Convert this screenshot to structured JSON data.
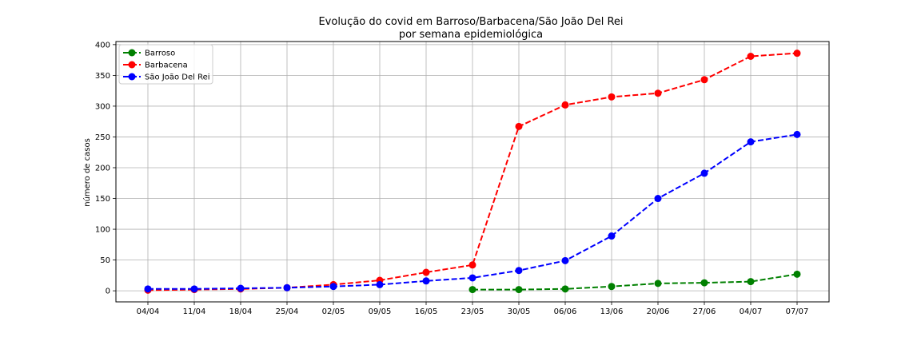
{
  "chart_data": {
    "type": "line",
    "title_line1": "Evolução do covid em Barroso/Barbacena/São João Del Rei",
    "title_line2": "por semana epidemiológica",
    "xlabel": "",
    "ylabel": "número de casos",
    "categories": [
      "04/04",
      "11/04",
      "18/04",
      "25/04",
      "02/05",
      "09/05",
      "16/05",
      "23/05",
      "30/05",
      "06/06",
      "13/06",
      "20/06",
      "27/06",
      "04/07",
      "07/07"
    ],
    "ylim": [
      -18,
      405
    ],
    "yticks": [
      0,
      50,
      100,
      150,
      200,
      250,
      300,
      350,
      400
    ],
    "grid": true,
    "legend_position": "upper-left",
    "series": [
      {
        "name": "Barroso",
        "color": "#008000",
        "values": [
          null,
          null,
          null,
          null,
          null,
          null,
          null,
          2,
          2,
          3,
          7,
          12,
          13,
          15,
          27
        ]
      },
      {
        "name": "Barbacena",
        "color": "#ff0000",
        "values": [
          1,
          2,
          3,
          5,
          10,
          17,
          30,
          42,
          267,
          302,
          315,
          321,
          343,
          381,
          386
        ]
      },
      {
        "name": "São João Del Rei",
        "color": "#0000ff",
        "values": [
          3,
          3,
          4,
          5,
          7,
          10,
          16,
          21,
          33,
          49,
          89,
          150,
          191,
          242,
          254
        ]
      }
    ]
  }
}
